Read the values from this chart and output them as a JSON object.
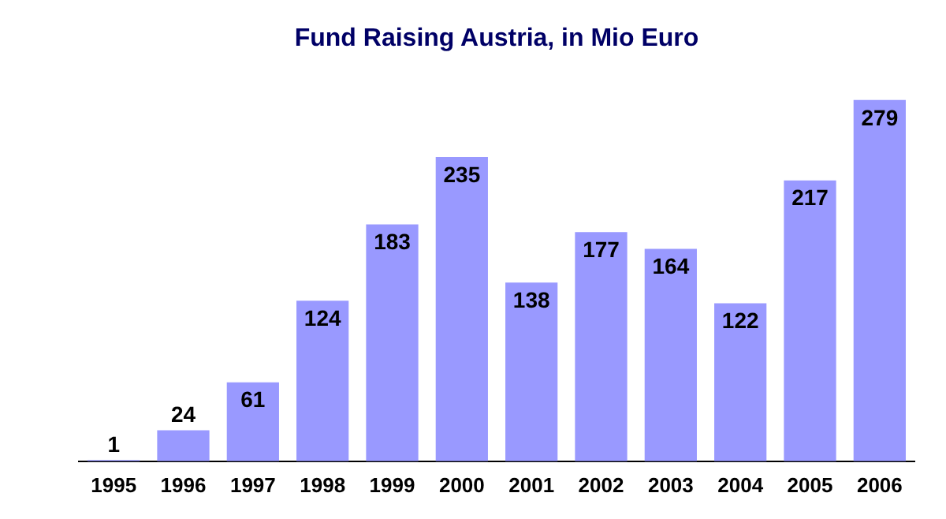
{
  "chart_data": {
    "type": "bar",
    "title": "Fund Raising Austria, in Mio Euro",
    "categories": [
      "1995",
      "1996",
      "1997",
      "1998",
      "1999",
      "2000",
      "2001",
      "2002",
      "2003",
      "2004",
      "2005",
      "2006"
    ],
    "values": [
      1,
      24,
      61,
      124,
      183,
      235,
      138,
      177,
      164,
      122,
      217,
      279
    ],
    "color": "#9999ff",
    "data_labels": true,
    "tick_labels": "x",
    "grid": false,
    "legend": false
  }
}
